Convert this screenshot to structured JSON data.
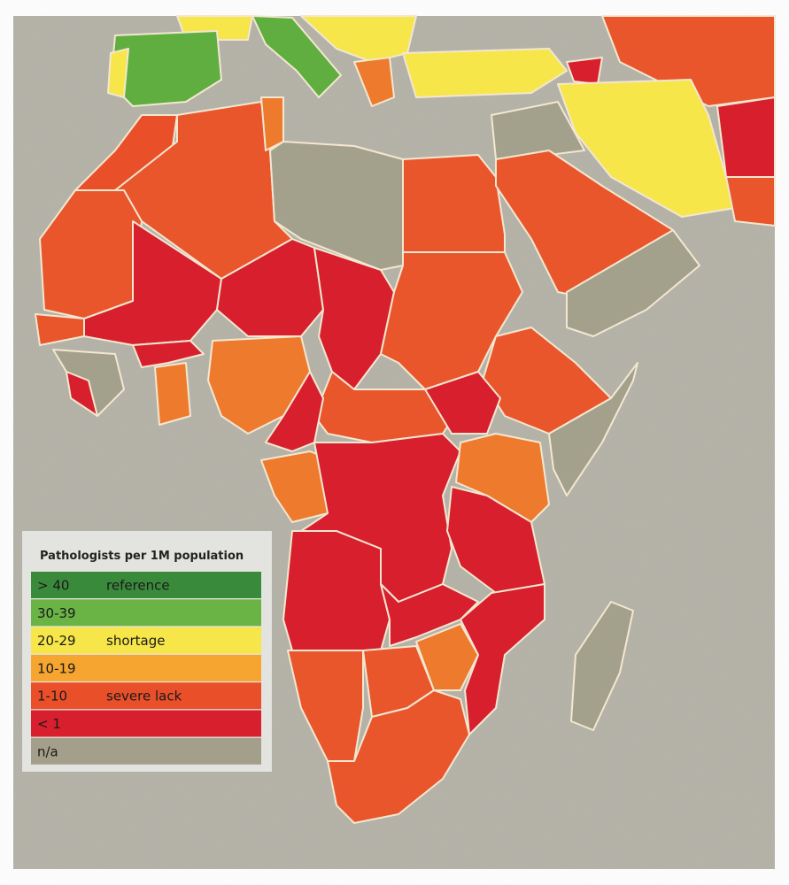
{
  "legend": {
    "title": "Pathologists per 1M population",
    "items": [
      {
        "range": "> 40",
        "label": "reference"
      },
      {
        "range": "30-39"
      },
      {
        "range": "20-29",
        "label": "shortage"
      },
      {
        "range": "10-19"
      },
      {
        "range": "1-10",
        "label": "severe lack"
      },
      {
        "range": "< 1"
      },
      {
        "range": "n/a"
      }
    ]
  }
}
